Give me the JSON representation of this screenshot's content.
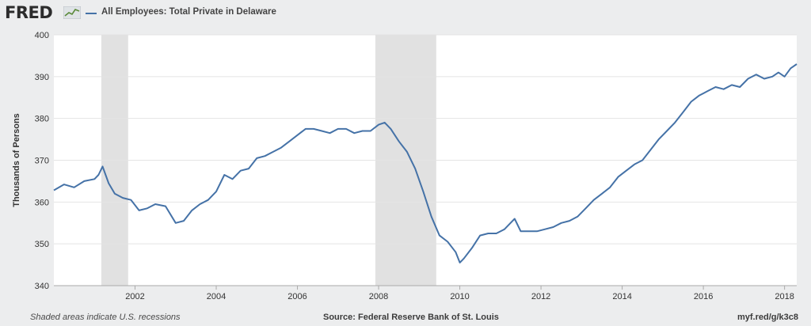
{
  "header": {
    "logo_text": "FRED",
    "series_title": "All Employees: Total Private in Delaware",
    "series_color": "#4572a7"
  },
  "footer": {
    "note": "Shaded areas indicate U.S. recessions",
    "source": "Source: Federal Reserve Bank of St. Louis",
    "link": "myf.red/g/k3c8"
  },
  "chart_data": {
    "type": "line",
    "title": "",
    "xlabel": "",
    "ylabel": "Thousands of Persons",
    "xlim": [
      2000.0,
      2018.3
    ],
    "ylim": [
      340,
      400
    ],
    "yticks": [
      340,
      350,
      360,
      370,
      380,
      390,
      400
    ],
    "xticks": [
      2002,
      2004,
      2006,
      2008,
      2010,
      2012,
      2014,
      2016,
      2018
    ],
    "grid": true,
    "background": "#ffffff",
    "recession_color": "#e1e1e1",
    "recessions": [
      [
        2001.17,
        2001.83
      ],
      [
        2007.92,
        2009.42
      ]
    ],
    "series": [
      {
        "name": "All Employees: Total Private in Delaware",
        "color": "#4572a7",
        "x": [
          2000.0,
          2000.25,
          2000.5,
          2000.75,
          2001.0,
          2001.1,
          2001.2,
          2001.35,
          2001.5,
          2001.7,
          2001.9,
          2002.1,
          2002.3,
          2002.5,
          2002.75,
          2003.0,
          2003.2,
          2003.4,
          2003.6,
          2003.8,
          2004.0,
          2004.2,
          2004.4,
          2004.6,
          2004.8,
          2005.0,
          2005.2,
          2005.4,
          2005.6,
          2005.8,
          2006.0,
          2006.2,
          2006.4,
          2006.6,
          2006.8,
          2007.0,
          2007.2,
          2007.4,
          2007.6,
          2007.8,
          2008.0,
          2008.15,
          2008.3,
          2008.5,
          2008.7,
          2008.9,
          2009.1,
          2009.3,
          2009.5,
          2009.7,
          2009.9,
          2010.0,
          2010.1,
          2010.3,
          2010.5,
          2010.7,
          2010.9,
          2011.1,
          2011.25,
          2011.35,
          2011.5,
          2011.7,
          2011.9,
          2012.1,
          2012.3,
          2012.5,
          2012.7,
          2012.9,
          2013.1,
          2013.3,
          2013.5,
          2013.7,
          2013.9,
          2014.1,
          2014.3,
          2014.5,
          2014.7,
          2014.9,
          2015.1,
          2015.3,
          2015.5,
          2015.7,
          2015.9,
          2016.1,
          2016.3,
          2016.5,
          2016.7,
          2016.9,
          2017.1,
          2017.3,
          2017.5,
          2017.7,
          2017.85,
          2018.0,
          2018.15,
          2018.3
        ],
        "values": [
          362.8,
          364.2,
          363.5,
          365.0,
          365.5,
          366.5,
          368.5,
          364.5,
          362.0,
          361.0,
          360.5,
          358.0,
          358.5,
          359.5,
          359.0,
          355.0,
          355.5,
          358.0,
          359.5,
          360.5,
          362.5,
          366.5,
          365.5,
          367.5,
          368.0,
          370.5,
          371.0,
          372.0,
          373.0,
          374.5,
          376.0,
          377.5,
          377.5,
          377.0,
          376.5,
          377.5,
          377.5,
          376.5,
          377.0,
          377.0,
          378.5,
          379.0,
          377.5,
          374.5,
          372.0,
          368.0,
          362.5,
          356.5,
          352.0,
          350.5,
          348.0,
          345.5,
          346.5,
          349.0,
          352.0,
          352.5,
          352.5,
          353.5,
          355.0,
          356.0,
          353.0,
          353.0,
          353.0,
          353.5,
          354.0,
          355.0,
          355.5,
          356.5,
          358.5,
          360.5,
          362.0,
          363.5,
          366.0,
          367.5,
          369.0,
          370.0,
          372.5,
          375.0,
          377.0,
          379.0,
          381.5,
          384.0,
          385.5,
          386.5,
          387.5,
          387.0,
          388.0,
          387.5,
          389.5,
          390.5,
          389.5,
          390.0,
          391.0,
          390.0,
          392.0,
          393.0
        ]
      }
    ]
  }
}
